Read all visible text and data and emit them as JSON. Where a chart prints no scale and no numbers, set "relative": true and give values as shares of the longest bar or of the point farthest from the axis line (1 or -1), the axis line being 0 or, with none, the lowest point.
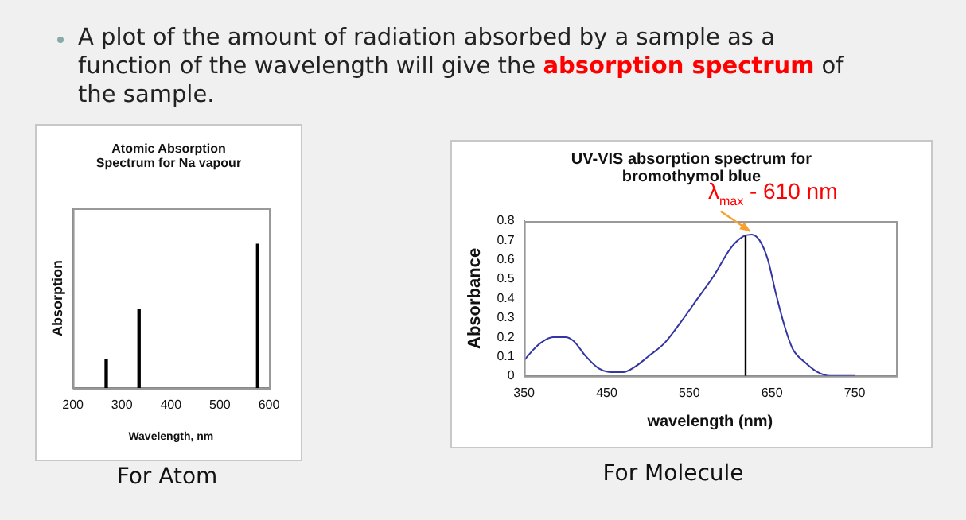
{
  "chart_data": [
    {
      "type": "bar",
      "title": "Atomic Absorption Spectrum for Na vapour",
      "xlabel": "Wavelength, nm",
      "ylabel": "Absorption",
      "relative": true,
      "x": [
        268,
        335,
        577
      ],
      "values": [
        0.2,
        0.55,
        1
      ],
      "color": "#000000",
      "xlim": [
        200,
        600
      ],
      "xticks": [
        200,
        300,
        400,
        500,
        600
      ],
      "grid": false,
      "legend": false,
      "annotations": [
        "A plot of the amount of radiation absorbed by a sample as a function of the wavelength will give the ",
        "absorption spectrum",
        " of the sample.",
        "For Atom"
      ]
    },
    {
      "type": "line",
      "title": "UV-VIS absorption spectrum for bromothymol blue",
      "xlabel": "wavelength (nm)",
      "ylabel": "Absorbance",
      "color": "#3535a5",
      "marker": "none",
      "line_style": "solid",
      "grid": false,
      "legend": false,
      "x": [
        350,
        360,
        370,
        385,
        400,
        410,
        425,
        440,
        455,
        470,
        485,
        500,
        520,
        540,
        560,
        580,
        600,
        615,
        625,
        635,
        645,
        655,
        665,
        675,
        690,
        705,
        720,
        750
      ],
      "values": [
        0.08,
        0.13,
        0.17,
        0.2,
        0.2,
        0.18,
        0.1,
        0.04,
        0.02,
        0.02,
        0.05,
        0.1,
        0.17,
        0.28,
        0.4,
        0.52,
        0.66,
        0.72,
        0.73,
        0.7,
        0.6,
        0.42,
        0.26,
        0.14,
        0.07,
        0.02,
        0,
        0
      ],
      "xlim": [
        350,
        800
      ],
      "xticks": [
        350,
        450,
        550,
        650,
        750
      ],
      "ylim": [
        0,
        0.8
      ],
      "yticks": [
        0,
        0.1,
        0.2,
        0.3,
        0.4,
        0.5,
        0.6,
        0.7,
        0.8
      ],
      "ref_lines": [
        {
          "axis": "x",
          "value": 618,
          "color": "#000000"
        }
      ],
      "annotations": [
        {
          "text": "λ$_{max}$ - 610 nm",
          "x": 618,
          "y": 0.73
        },
        "For Molecule"
      ]
    }
  ]
}
